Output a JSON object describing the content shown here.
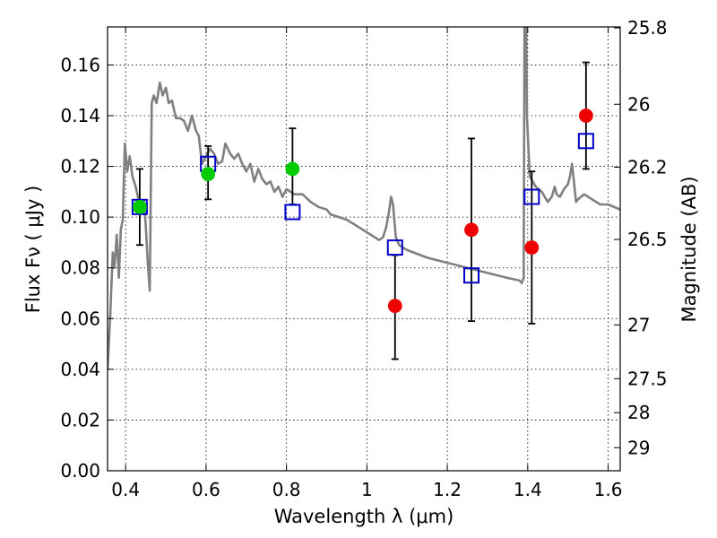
{
  "chart_data": {
    "type": "scatter",
    "title": "",
    "xlabel": "Wavelength  λ (μm)",
    "ylabel_left": "Flux  Fν  ( μJy )",
    "ylabel_right": "Magnitude (AB)",
    "xlim": [
      0.355,
      1.63
    ],
    "ylim": [
      0.0,
      0.175
    ],
    "grid": true,
    "x_ticks": [
      0.4,
      0.6,
      0.8,
      1.0,
      1.2,
      1.4,
      1.6
    ],
    "x_tick_labels": [
      "0.4",
      "0.6",
      "0.8",
      "1",
      "1.2",
      "1.4",
      "1.6"
    ],
    "y_ticks": [
      0.0,
      0.02,
      0.04,
      0.06,
      0.08,
      0.1,
      0.12,
      0.14,
      0.16
    ],
    "y_tick_labels": [
      "0.00",
      "0.02",
      "0.04",
      "0.06",
      "0.08",
      "0.10",
      "0.12",
      "0.14",
      "0.16"
    ],
    "right_ticks": [
      {
        "flux": 0.1746,
        "label": "25.8"
      },
      {
        "flux": 0.1445,
        "label": "26"
      },
      {
        "flux": 0.1197,
        "label": "26.2"
      },
      {
        "flux": 0.0912,
        "label": "26.5"
      },
      {
        "flux": 0.0575,
        "label": "27"
      },
      {
        "flux": 0.0363,
        "label": "27.5"
      },
      {
        "flux": 0.0229,
        "label": "28"
      },
      {
        "flux": 0.0091,
        "label": "29"
      }
    ],
    "series": [
      {
        "kind": "line",
        "color": "#808080",
        "points": [
          [
            0.355,
            0.04
          ],
          [
            0.362,
            0.062
          ],
          [
            0.368,
            0.086
          ],
          [
            0.372,
            0.08
          ],
          [
            0.378,
            0.093
          ],
          [
            0.383,
            0.076
          ],
          [
            0.388,
            0.095
          ],
          [
            0.393,
            0.099
          ],
          [
            0.398,
            0.129
          ],
          [
            0.404,
            0.118
          ],
          [
            0.41,
            0.124
          ],
          [
            0.417,
            0.116
          ],
          [
            0.425,
            0.112
          ],
          [
            0.432,
            0.107
          ],
          [
            0.44,
            0.104
          ],
          [
            0.446,
            0.106
          ],
          [
            0.45,
            0.097
          ],
          [
            0.455,
            0.082
          ],
          [
            0.46,
            0.071
          ],
          [
            0.465,
            0.145
          ],
          [
            0.47,
            0.148
          ],
          [
            0.477,
            0.145
          ],
          [
            0.485,
            0.153
          ],
          [
            0.492,
            0.148
          ],
          [
            0.5,
            0.151
          ],
          [
            0.507,
            0.145
          ],
          [
            0.515,
            0.146
          ],
          [
            0.525,
            0.139
          ],
          [
            0.535,
            0.139
          ],
          [
            0.545,
            0.138
          ],
          [
            0.555,
            0.134
          ],
          [
            0.565,
            0.14
          ],
          [
            0.575,
            0.134
          ],
          [
            0.582,
            0.132
          ],
          [
            0.59,
            0.121
          ],
          [
            0.6,
            0.124
          ],
          [
            0.61,
            0.127
          ],
          [
            0.62,
            0.125
          ],
          [
            0.63,
            0.121
          ],
          [
            0.64,
            0.122
          ],
          [
            0.648,
            0.129
          ],
          [
            0.66,
            0.125
          ],
          [
            0.67,
            0.123
          ],
          [
            0.68,
            0.125
          ],
          [
            0.69,
            0.121
          ],
          [
            0.7,
            0.118
          ],
          [
            0.71,
            0.121
          ],
          [
            0.72,
            0.114
          ],
          [
            0.73,
            0.119
          ],
          [
            0.74,
            0.115
          ],
          [
            0.75,
            0.113
          ],
          [
            0.76,
            0.114
          ],
          [
            0.77,
            0.11
          ],
          [
            0.78,
            0.112
          ],
          [
            0.79,
            0.108
          ],
          [
            0.8,
            0.111
          ],
          [
            0.82,
            0.109
          ],
          [
            0.84,
            0.109
          ],
          [
            0.86,
            0.106
          ],
          [
            0.88,
            0.104
          ],
          [
            0.9,
            0.103
          ],
          [
            0.91,
            0.101
          ],
          [
            0.93,
            0.1
          ],
          [
            0.95,
            0.099
          ],
          [
            0.97,
            0.097
          ],
          [
            0.99,
            0.095
          ],
          [
            1.01,
            0.093
          ],
          [
            1.03,
            0.091
          ],
          [
            1.04,
            0.092
          ],
          [
            1.048,
            0.096
          ],
          [
            1.055,
            0.102
          ],
          [
            1.06,
            0.108
          ],
          [
            1.065,
            0.105
          ],
          [
            1.072,
            0.092
          ],
          [
            1.08,
            0.089
          ],
          [
            1.1,
            0.087
          ],
          [
            1.15,
            0.084
          ],
          [
            1.2,
            0.082
          ],
          [
            1.25,
            0.08
          ],
          [
            1.3,
            0.078
          ],
          [
            1.35,
            0.076
          ],
          [
            1.38,
            0.075
          ],
          [
            1.385,
            0.074
          ],
          [
            1.39,
            0.076
          ],
          [
            1.392,
            0.175
          ],
          [
            1.396,
            0.175
          ],
          [
            1.398,
            0.14
          ],
          [
            1.405,
            0.116
          ],
          [
            1.42,
            0.112
          ],
          [
            1.435,
            0.11
          ],
          [
            1.45,
            0.106
          ],
          [
            1.46,
            0.108
          ],
          [
            1.467,
            0.112
          ],
          [
            1.472,
            0.109
          ],
          [
            1.48,
            0.108
          ],
          [
            1.49,
            0.111
          ],
          [
            1.5,
            0.113
          ],
          [
            1.505,
            0.116
          ],
          [
            1.51,
            0.121
          ],
          [
            1.515,
            0.114
          ],
          [
            1.52,
            0.106
          ],
          [
            1.525,
            0.107
          ],
          [
            1.54,
            0.109
          ],
          [
            1.55,
            0.108
          ],
          [
            1.56,
            0.107
          ],
          [
            1.58,
            0.105
          ],
          [
            1.6,
            0.105
          ],
          [
            1.63,
            0.103
          ]
        ]
      },
      {
        "kind": "errorbar",
        "color": "#000000",
        "points": [
          {
            "x": 0.435,
            "lo": 0.089,
            "hi": 0.119
          },
          {
            "x": 0.605,
            "lo": 0.107,
            "hi": 0.128
          },
          {
            "x": 0.815,
            "lo": 0.105,
            "hi": 0.135
          },
          {
            "x": 1.07,
            "lo": 0.044,
            "hi": 0.085
          },
          {
            "x": 1.26,
            "lo": 0.059,
            "hi": 0.131
          },
          {
            "x": 1.41,
            "lo": 0.058,
            "hi": 0.118
          },
          {
            "x": 1.545,
            "lo": 0.119,
            "hi": 0.161
          }
        ]
      },
      {
        "kind": "square",
        "color": "#0000cc",
        "points": [
          [
            0.435,
            0.104
          ],
          [
            0.605,
            0.121
          ],
          [
            0.815,
            0.102
          ],
          [
            1.07,
            0.088
          ],
          [
            1.26,
            0.077
          ],
          [
            1.41,
            0.108
          ],
          [
            1.545,
            0.13
          ]
        ]
      },
      {
        "kind": "circle",
        "color": "#00cc00",
        "points": [
          [
            0.435,
            0.104
          ],
          [
            0.605,
            0.117
          ],
          [
            0.815,
            0.119
          ]
        ]
      },
      {
        "kind": "circle",
        "color": "#ee0000",
        "points": [
          [
            1.07,
            0.065
          ],
          [
            1.26,
            0.095
          ],
          [
            1.41,
            0.088
          ],
          [
            1.545,
            0.14
          ]
        ]
      }
    ]
  }
}
